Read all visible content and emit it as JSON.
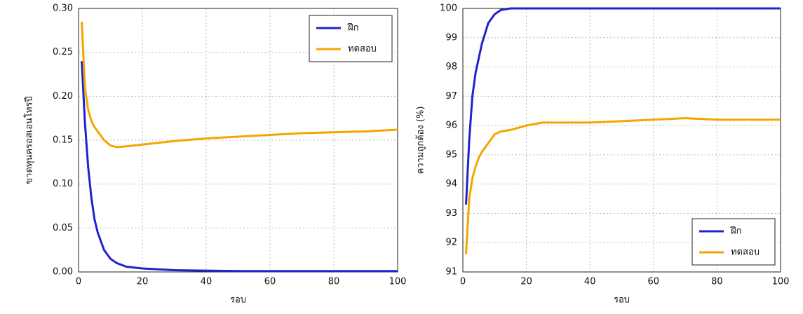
{
  "chart_data": [
    {
      "type": "line",
      "ylabel": "ขาดทุนครอสเอนโทรปี",
      "xlabel": "รอบ",
      "x": [
        1,
        2,
        3,
        4,
        5,
        6,
        8,
        10,
        12,
        15,
        20,
        25,
        30,
        40,
        50,
        60,
        70,
        80,
        90,
        100
      ],
      "series": [
        {
          "name": "ฝึก",
          "color": "#2222cc",
          "values": [
            0.24,
            0.17,
            0.12,
            0.085,
            0.06,
            0.045,
            0.025,
            0.015,
            0.01,
            0.006,
            0.004,
            0.003,
            0.002,
            0.0015,
            0.001,
            0.001,
            0.001,
            0.001,
            0.001,
            0.001
          ]
        },
        {
          "name": "ทดสอบ",
          "color": "#f5a500",
          "values": [
            0.285,
            0.21,
            0.185,
            0.172,
            0.165,
            0.16,
            0.15,
            0.144,
            0.142,
            0.143,
            0.145,
            0.147,
            0.149,
            0.152,
            0.154,
            0.156,
            0.158,
            0.159,
            0.16,
            0.162
          ]
        }
      ],
      "xlim": [
        0,
        100
      ],
      "xticks": [
        0,
        20,
        40,
        60,
        80,
        100
      ],
      "ylim": [
        0,
        0.3
      ],
      "yticks": [
        {
          "value": 0,
          "label": "0.00"
        },
        0.05,
        {
          "value": 0.1,
          "label": "0.10"
        },
        0.15,
        {
          "value": 0.2,
          "label": "0.20"
        },
        0.25,
        {
          "value": 0.3,
          "label": "0.30"
        }
      ],
      "grid": true,
      "legend": "upper right"
    },
    {
      "type": "line",
      "ylabel": "ความถูกต้อง (%)",
      "xlabel": "รอบ",
      "x": [
        1,
        2,
        3,
        4,
        5,
        6,
        8,
        10,
        12,
        15,
        20,
        25,
        30,
        40,
        50,
        60,
        70,
        80,
        90,
        100
      ],
      "series": [
        {
          "name": "ฝึก",
          "color": "#2222cc",
          "values": [
            93.3,
            95.5,
            97,
            97.8,
            98.3,
            98.8,
            99.5,
            99.8,
            99.95,
            100,
            100,
            100,
            100,
            100,
            100,
            100,
            100,
            100,
            100,
            100
          ]
        },
        {
          "name": "ทดสอบ",
          "color": "#f5a500",
          "values": [
            91.6,
            93.5,
            94.2,
            94.6,
            94.9,
            95.1,
            95.4,
            95.7,
            95.8,
            95.85,
            96,
            96.1,
            96.1,
            96.1,
            96.15,
            96.2,
            96.25,
            96.2,
            96.2,
            96.2
          ]
        }
      ],
      "xlim": [
        0,
        100
      ],
      "xticks": [
        0,
        20,
        40,
        60,
        80,
        100
      ],
      "ylim": [
        91,
        100
      ],
      "yticks": [
        91,
        92,
        93,
        94,
        95,
        96,
        97,
        98,
        99,
        100
      ],
      "grid": true,
      "legend": "lower right"
    }
  ]
}
